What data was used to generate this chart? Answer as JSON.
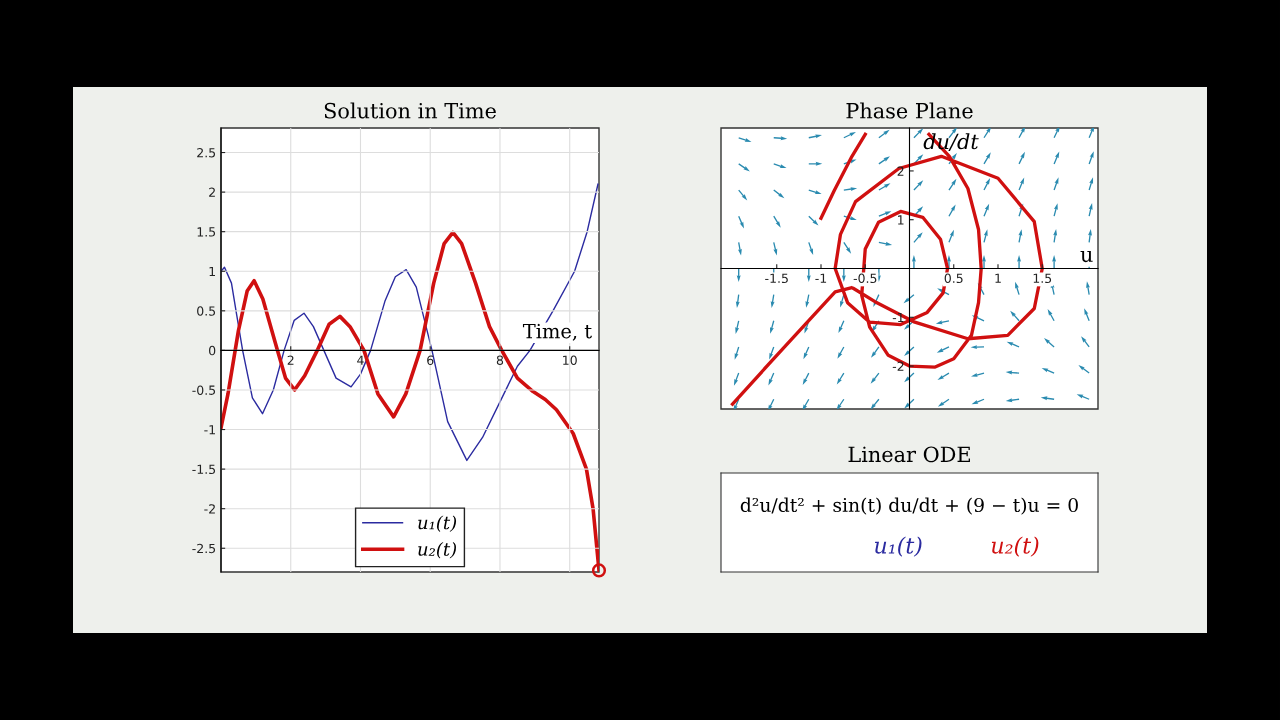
{
  "chart_data": [
    {
      "type": "line",
      "title": "Solution in Time",
      "xlabel": "Time, t",
      "xlim": [
        0,
        10.84
      ],
      "ylim": [
        -2.8,
        2.81
      ],
      "xticks": [
        2,
        4,
        6,
        8,
        10
      ],
      "yticks": [
        -2.5,
        -2,
        -1.5,
        -1,
        -0.5,
        0,
        0.5,
        1,
        1.5,
        2,
        2.5
      ],
      "grid": true,
      "legend": "bottom",
      "series": [
        {
          "name": "u₁(t)",
          "color": "#2b2ba0",
          "x": [
            0,
            0.1,
            0.3,
            0.45,
            0.62,
            0.9,
            1.19,
            1.5,
            1.81,
            2.1,
            2.38,
            2.65,
            2.95,
            3.3,
            3.73,
            4.0,
            4.29,
            4.7,
            5.0,
            5.31,
            5.6,
            6.05,
            6.5,
            7.05,
            7.5,
            8.0,
            8.5,
            8.86,
            9.52,
            10.14,
            10.5,
            10.81
          ],
          "values": [
            1.0,
            1.05,
            0.85,
            0.45,
            0,
            -0.6,
            -0.8,
            -0.5,
            0,
            0.38,
            0.47,
            0.3,
            0,
            -0.35,
            -0.46,
            -0.3,
            0,
            0.62,
            0.93,
            1.02,
            0.8,
            0,
            -0.9,
            -1.39,
            -1.1,
            -0.65,
            -0.2,
            0,
            0.5,
            1.0,
            1.5,
            2.1
          ]
        },
        {
          "name": "u₂(t)",
          "color": "#d01010",
          "x": [
            0,
            0.2,
            0.5,
            0.75,
            0.95,
            1.2,
            1.62,
            1.85,
            2.11,
            2.4,
            2.76,
            3.1,
            3.41,
            3.7,
            4.1,
            4.5,
            4.95,
            5.3,
            5.71,
            6.1,
            6.4,
            6.65,
            6.9,
            7.3,
            7.7,
            8.05,
            8.5,
            8.95,
            9.3,
            9.62,
            10.1,
            10.48,
            10.67,
            10.84
          ],
          "values": [
            -0.98,
            -0.55,
            0.25,
            0.75,
            0.88,
            0.65,
            0,
            -0.35,
            -0.5,
            -0.32,
            0,
            0.33,
            0.43,
            0.3,
            0,
            -0.55,
            -0.84,
            -0.55,
            0,
            0.85,
            1.35,
            1.49,
            1.35,
            0.85,
            0.3,
            0,
            -0.35,
            -0.52,
            -0.62,
            -0.75,
            -1.05,
            -1.5,
            -2.0,
            -2.78
          ]
        },
        {
          "type": "scatter",
          "marker": "circle",
          "color": "#d01010",
          "x": [
            10.84
          ],
          "values": [
            -2.78
          ]
        }
      ]
    },
    {
      "type": "line",
      "title": "Phase Plane",
      "xlabel": "u",
      "ylabel": "du/dt",
      "xlim": [
        -2.13,
        2.13
      ],
      "ylim": [
        -2.88,
        2.88
      ],
      "xticks": [
        -1.5,
        -1,
        -0.5,
        0.5,
        1,
        1.5
      ],
      "yticks": [
        -2,
        -1,
        1,
        2
      ],
      "series": [
        {
          "color": "#d01010",
          "x": [
            -1.0,
            -0.85,
            -0.65,
            -0.5,
            null,
            0.22,
            0.45,
            0.66,
            0.78,
            0.81,
            0.78,
            0.7,
            0.5,
            0.29,
            0.0,
            -0.24,
            -0.45,
            -0.54,
            -0.5,
            -0.35,
            -0.1,
            0.15,
            0.35,
            0.43,
            0.38,
            0.2,
            -0.1,
            -0.45,
            -0.7,
            -0.84,
            -0.78,
            -0.61,
            -0.12,
            0.36,
            1.0,
            1.41,
            1.5,
            1.41,
            1.11,
            0.66,
            0.06,
            -0.39,
            -0.65,
            -0.84,
            -1.43,
            -2.0
          ],
          "values": [
            1.03,
            1.6,
            2.3,
            2.75,
            null,
            2.75,
            2.3,
            1.64,
            0.8,
            0,
            -0.7,
            -1.37,
            -1.85,
            -2.02,
            -2.0,
            -1.78,
            -1.2,
            -0.55,
            0.4,
            0.95,
            1.17,
            1.05,
            0.6,
            0,
            -0.5,
            -0.9,
            -1.15,
            -1.1,
            -0.7,
            0,
            0.7,
            1.37,
            2.05,
            2.3,
            1.85,
            0.96,
            0,
            -0.82,
            -1.37,
            -1.44,
            -1.1,
            -0.68,
            -0.39,
            -0.48,
            -1.64,
            -2.78
          ]
        }
      ]
    },
    {
      "type": "other",
      "title": "Linear ODE",
      "annotations": [
        "d²u/dt² + sin(t) du/dt + (9 − t)u = 0",
        "u₁(t)",
        "u₂(t)"
      ]
    }
  ]
}
